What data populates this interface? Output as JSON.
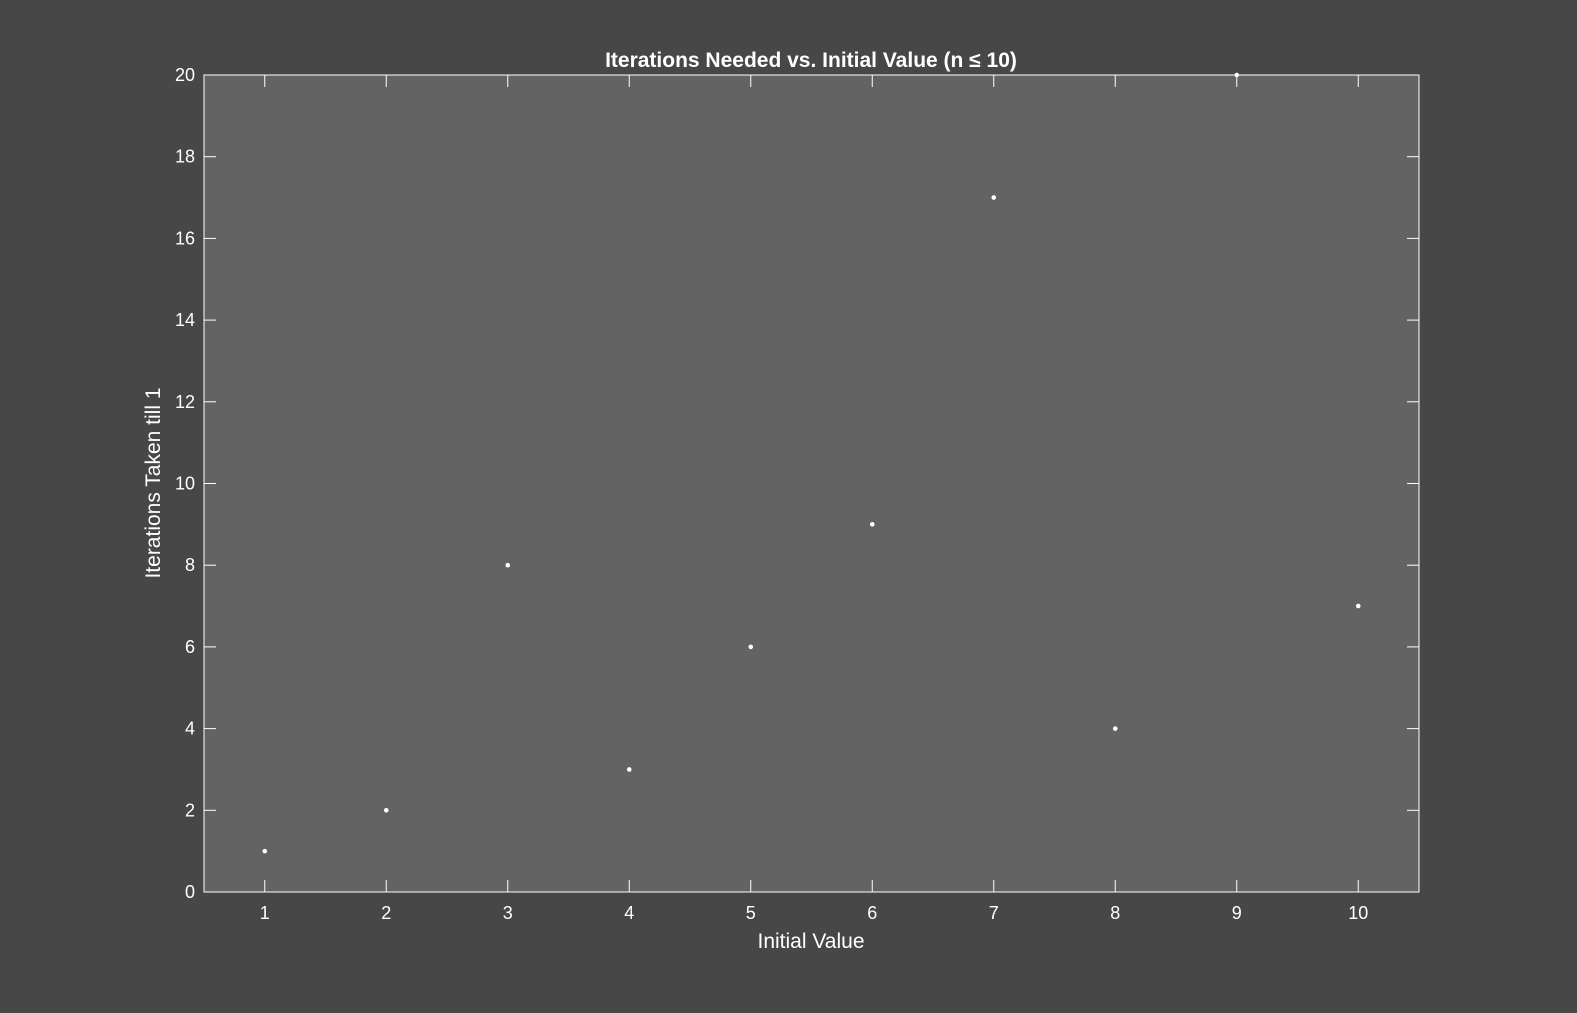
{
  "chart_data": {
    "type": "scatter",
    "title": "Iterations Needed vs. Initial Value (n ≤ 10)",
    "xlabel": "Initial Value",
    "ylabel": "Iterations Taken till 1",
    "xlim": [
      0.5,
      10.5
    ],
    "ylim": [
      0,
      20
    ],
    "xticks": [
      1,
      2,
      3,
      4,
      5,
      6,
      7,
      8,
      9,
      10
    ],
    "yticks": [
      0,
      2,
      4,
      6,
      8,
      10,
      12,
      14,
      16,
      18,
      20
    ],
    "grid": false,
    "series": [
      {
        "x": [
          1,
          2,
          3,
          4,
          5,
          6,
          7,
          8,
          9,
          10
        ],
        "y": [
          1,
          2,
          8,
          3,
          6,
          9,
          17,
          4,
          20,
          7
        ]
      }
    ],
    "colors": {
      "figure_background": "#474747",
      "axes_background": "#636363",
      "foreground": "#ffffff",
      "marker": "#ffffff"
    }
  }
}
